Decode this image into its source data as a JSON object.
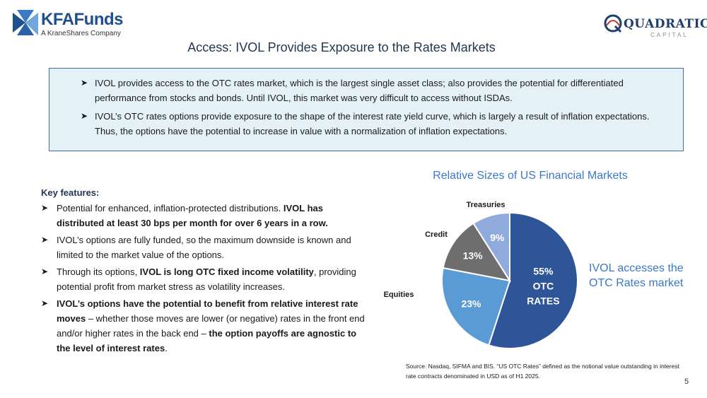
{
  "header": {
    "kfa_logo_name": "KFAFunds",
    "kfa_logo_subtitle": "A KraneShares Company",
    "quadratic_logo_name": "QUADRATIC",
    "quadratic_logo_subtitle": "CAPITAL",
    "title": "Access: IVOL Provides Exposure to the Rates Markets"
  },
  "intro": {
    "items": [
      "IVOL provides access to the OTC rates market, which is the largest single asset class; also provides the potential for differentiated performance from stocks and bonds. Until IVOL, this market was very difficult to access without ISDAs.",
      "IVOL’s OTC rates options provide exposure to the shape of the interest rate yield curve, which is largely a result of inflation expectations.  Thus, the options have the potential to increase in value with a normalization of inflation expectations."
    ]
  },
  "features": {
    "heading": "Key features:",
    "items": [
      {
        "p1": "Potential for enhanced, inflation-protected distributions.  ",
        "b1": "IVOL has distributed at least 30 bps per month for over 6 years in a row."
      },
      {
        "p1": "IVOL’s options are fully funded, so the maximum downside is known and limited to the market value of the options."
      },
      {
        "p1": "Through its options, ",
        "b1": "IVOL is long OTC fixed income volatility",
        "p2": ", providing potential profit from market stress as volatility increases."
      },
      {
        "b1": "IVOL’s options have the potential to benefit from relative interest rate moves",
        "p1": " – whether those moves are lower (or negative) rates in the front end and/or higher rates in the back end – ",
        "b2": "the option payoffs are agnostic to the level of interest rates",
        "p2": "."
      }
    ]
  },
  "chart_data": {
    "type": "pie",
    "title": "Relative Sizes of US Financial Markets",
    "slices": [
      {
        "label": "",
        "value": 55,
        "value_label": "55%",
        "inner_lines": [
          "OTC",
          "RATES"
        ],
        "color": "#2e5597"
      },
      {
        "label": "Equities",
        "value": 23,
        "value_label": "23%",
        "color": "#5b9bd5"
      },
      {
        "label": "Credit",
        "value": 13,
        "value_label": "13%",
        "color": "#6e6e6e"
      },
      {
        "label": "Treasuries",
        "value": 9,
        "value_label": "9%",
        "color": "#8fabdc"
      }
    ],
    "callout": "IVOL accesses the OTC Rates market",
    "source": "Source: Nasdaq, SIFMA and BIS. “US OTC Rates” defined as the notional value outstanding in interest rate contracts denominated in USD as of H1 2025."
  },
  "footer": {
    "page_number": "5"
  },
  "icons": {
    "bullet": "arrowhead-bullet-icon"
  },
  "colors": {
    "accent": "#3a78c8",
    "navy": "#1f3550",
    "box_fill": "#e4f2f8",
    "box_border": "#3c6ea8"
  }
}
